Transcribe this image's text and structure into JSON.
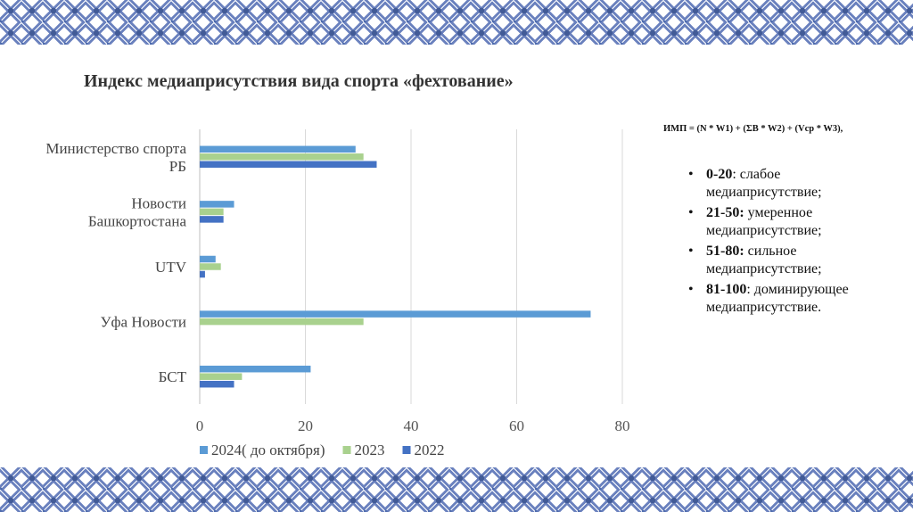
{
  "slide": {
    "title": "Индекс медиаприсутствия вида спорта «фехтование»"
  },
  "formula": "ИМП = (N * W1) + (ΣB * W2) + (Vcp * W3),",
  "scale": [
    {
      "range": "0-20",
      "text": ": слабое медиаприсутствие;"
    },
    {
      "range": "21-50:",
      "text": " умеренное медиаприсутствие;"
    },
    {
      "range": "51-80:",
      "text": " сильное медиаприсутствие;"
    },
    {
      "range": "81-100",
      "text": ": доминирующее медиаприсутствие."
    }
  ],
  "chart_data": {
    "type": "bar",
    "orientation": "horizontal",
    "categories": [
      "Министерство спорта РБ",
      "Новости Башкортостана",
      "UTV",
      "Уфа Новости",
      "БСТ"
    ],
    "series": [
      {
        "name": "2024( до октября)",
        "color": "#5b9bd5",
        "values": [
          29.5,
          6.5,
          3,
          74,
          21
        ]
      },
      {
        "name": "2023",
        "color": "#a9d18e",
        "values": [
          31,
          4.5,
          4,
          31,
          8
        ]
      },
      {
        "name": "2022",
        "color": "#4472c4",
        "values": [
          33.5,
          4.5,
          1,
          0,
          6.5
        ]
      }
    ],
    "xlim": [
      0,
      80
    ],
    "xticks": [
      0,
      20,
      40,
      60,
      80
    ],
    "grid": true,
    "legend": "bottom"
  }
}
